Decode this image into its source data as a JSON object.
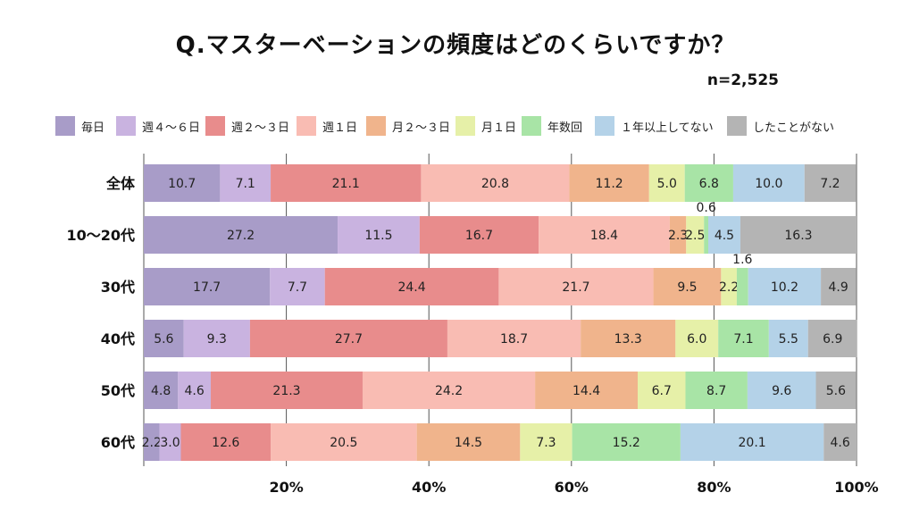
{
  "title": "Q.マスターベーションの頻度はどのくらいですか？",
  "sample_size": "n=2,525",
  "chart_data": {
    "type": "bar",
    "orientation": "horizontal",
    "stacked": "percent",
    "title": "Q.マスターベーションの頻度はどのくらいですか？",
    "categories": [
      "全体",
      "10～20代",
      "30代",
      "40代",
      "50代",
      "60代"
    ],
    "series": [
      {
        "name": "毎日",
        "color": "#a89cc8",
        "values": [
          10.7,
          27.2,
          17.7,
          5.6,
          4.8,
          2.2
        ]
      },
      {
        "name": "週４～６日",
        "color": "#c9b3e0",
        "values": [
          7.1,
          11.5,
          7.7,
          9.3,
          4.6,
          3.0
        ]
      },
      {
        "name": "週２～３日",
        "color": "#e88c8c",
        "values": [
          21.1,
          16.7,
          24.4,
          27.7,
          21.3,
          12.6
        ]
      },
      {
        "name": "週１日",
        "color": "#f9bcb3",
        "values": [
          20.8,
          18.4,
          21.7,
          18.7,
          24.2,
          20.5
        ]
      },
      {
        "name": "月２～３日",
        "color": "#f0b48c",
        "values": [
          11.2,
          2.3,
          9.5,
          13.3,
          14.4,
          14.5
        ]
      },
      {
        "name": "月１日",
        "color": "#e6f0a8",
        "values": [
          5.0,
          2.5,
          2.2,
          6.0,
          6.7,
          7.3
        ]
      },
      {
        "name": "年数回",
        "color": "#a8e4a6",
        "values": [
          6.8,
          0.6,
          1.6,
          7.1,
          8.7,
          15.2
        ]
      },
      {
        "name": "１年以上してない",
        "color": "#b4d2e8",
        "values": [
          10.0,
          4.5,
          10.2,
          5.5,
          9.6,
          20.1
        ]
      },
      {
        "name": "したことがない",
        "color": "#b4b4b4",
        "values": [
          7.2,
          16.3,
          4.9,
          6.9,
          5.6,
          4.6
        ]
      }
    ],
    "xlim": [
      0,
      100
    ],
    "xticks": [
      "20%",
      "40%",
      "60%",
      "80%",
      "100%"
    ],
    "xtick_values": [
      20,
      40,
      60,
      80,
      100
    ],
    "grid": true,
    "legend_position": "top"
  }
}
